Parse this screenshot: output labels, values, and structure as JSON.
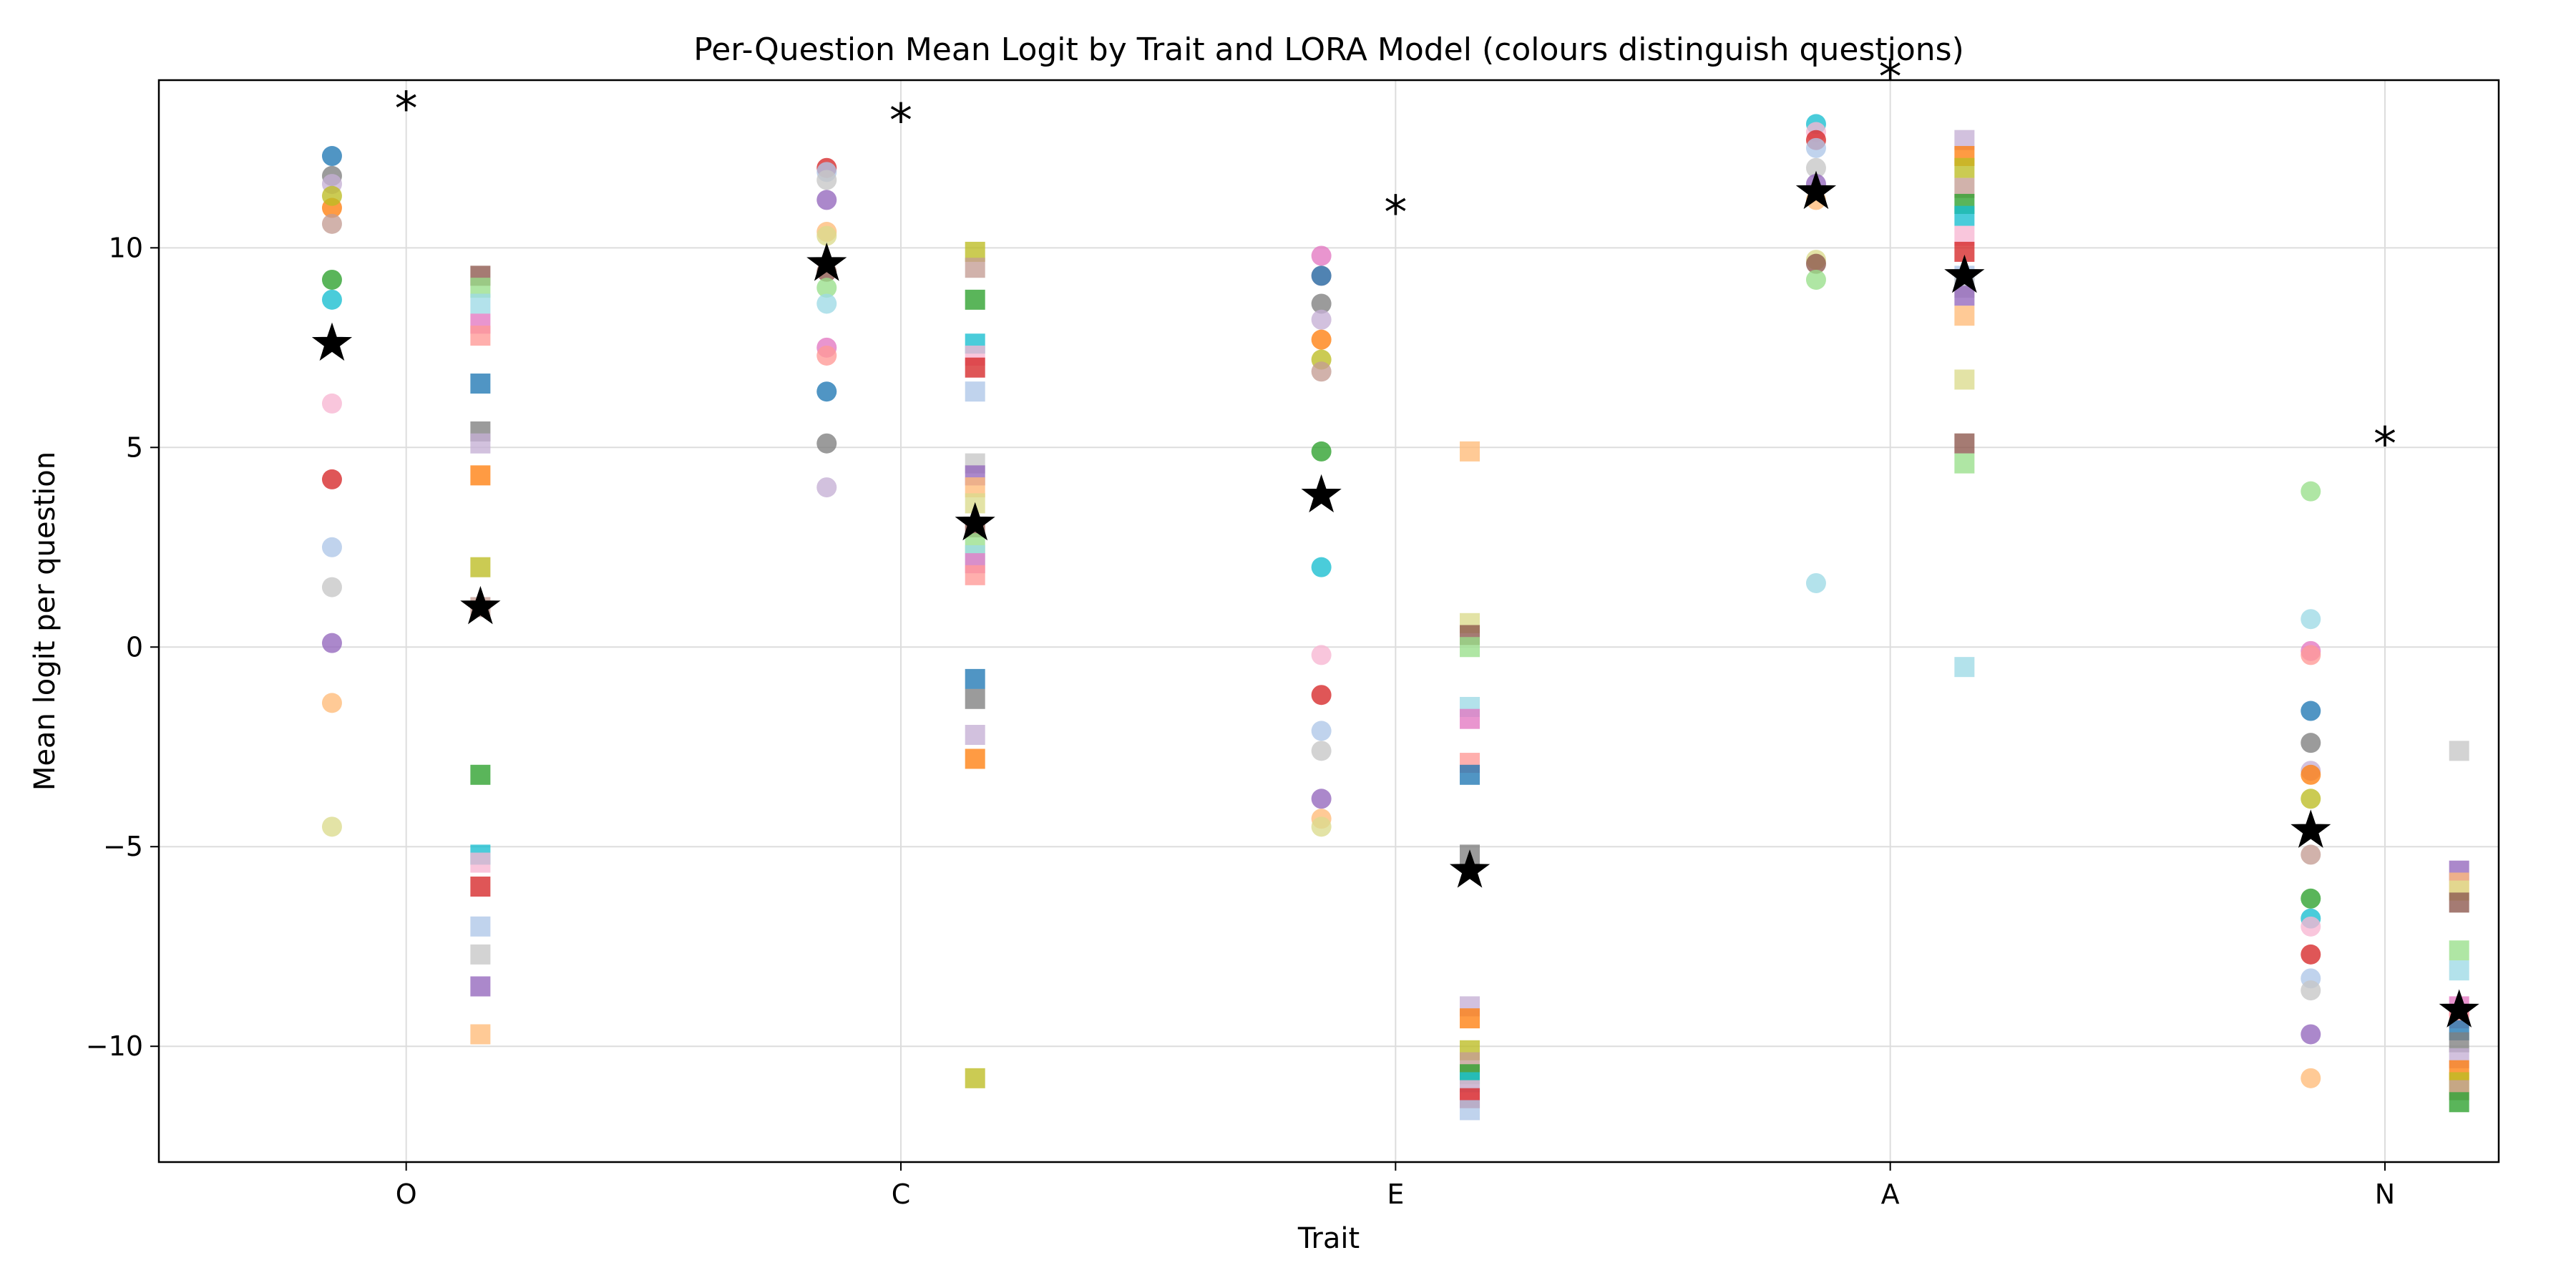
{
  "chart_data": {
    "type": "scatter",
    "title": "Per-Question Mean Logit by Trait and LORA Model (colours distinguish questions)",
    "xlabel": "Trait",
    "ylabel": "Mean logit per question",
    "categories": [
      "O",
      "C",
      "E",
      "A",
      "N"
    ],
    "ylim": [
      -12.9,
      14.2
    ],
    "yticks": [
      -10,
      -5,
      0,
      5,
      10
    ],
    "grid": true,
    "significance_marker": "*",
    "significance_y": [
      13.7,
      13.4,
      11.1,
      14.5,
      5.3
    ],
    "palette": [
      "#1f77b4",
      "#ff7f0e",
      "#2ca02c",
      "#d62728",
      "#9467bd",
      "#8c564b",
      "#e377c2",
      "#7f7f7f",
      "#bcbd22",
      "#17becf",
      "#aec7e8",
      "#ffbb78",
      "#98df8a",
      "#ff9896",
      "#c5b0d5",
      "#c49c94",
      "#f7b6d2",
      "#c7c7c7",
      "#dbdb8d",
      "#9edae5"
    ],
    "series": [
      {
        "marker": "circle",
        "offset": -0.15,
        "means": [
          7.6,
          9.6,
          3.8,
          11.4,
          -4.6
        ],
        "points": [
          [
            12.3,
            11.8,
            11.6,
            11.0,
            11.3,
            10.6,
            9.2,
            8.7,
            6.1,
            4.2,
            2.5,
            1.5,
            0.1,
            -1.4,
            -4.5
          ],
          [
            12.0,
            11.9,
            11.7,
            11.2,
            10.4,
            10.3,
            9.4,
            9.0,
            8.6,
            7.5,
            7.3,
            6.4,
            5.1,
            4.0
          ],
          [
            9.8,
            9.3,
            9.3,
            8.6,
            8.2,
            7.7,
            7.2,
            6.9,
            4.9,
            2.0,
            -0.2,
            -1.2,
            -2.1,
            -2.6,
            -3.8,
            -4.3,
            -4.5
          ],
          [
            13.1,
            12.9,
            12.7,
            12.5,
            12.0,
            11.6,
            11.2,
            9.7,
            9.6,
            9.2,
            1.6
          ],
          [
            3.9,
            0.7,
            -0.1,
            -0.2,
            -1.6,
            -2.4,
            -3.1,
            -3.2,
            -3.8,
            -5.2,
            -6.3,
            -6.8,
            -7.0,
            -7.7,
            -8.3,
            -8.6,
            -9.7,
            -10.8
          ]
        ]
      },
      {
        "marker": "square",
        "offset": 0.15,
        "means": [
          1.0,
          3.1,
          -5.6,
          9.3,
          -9.1
        ],
        "points": [
          [
            9.3,
            9.0,
            8.6,
            8.1,
            7.8,
            6.6,
            5.4,
            5.1,
            4.3,
            2.0,
            1.0,
            -3.2,
            -5.2,
            -5.4,
            -6.0,
            -7.0,
            -7.7,
            -8.5,
            -9.7
          ],
          [
            9.9,
            9.5,
            8.7,
            7.6,
            7.3,
            7.0,
            6.4,
            4.6,
            4.3,
            4.0,
            3.6,
            3.0,
            2.6,
            2.3,
            2.1,
            1.8,
            -0.8,
            -1.3,
            -2.2,
            -2.8,
            -10.8
          ],
          [
            4.9,
            0.6,
            0.3,
            0.0,
            -1.5,
            -1.8,
            -2.9,
            -3.2,
            -5.2,
            -9.0,
            -9.3,
            -10.1,
            -10.4,
            -10.7,
            -10.9,
            -11.1,
            -11.3,
            -11.6
          ],
          [
            12.7,
            12.3,
            12.0,
            11.5,
            11.1,
            10.8,
            10.3,
            9.9,
            9.3,
            9.0,
            8.8,
            8.3,
            6.7,
            5.1,
            4.6,
            -0.5
          ],
          [
            -2.6,
            -5.6,
            -5.9,
            -6.1,
            -6.4,
            -7.6,
            -8.1,
            -9.0,
            -9.3,
            -9.6,
            -9.9,
            -10.3,
            -10.6,
            -10.9,
            -11.1,
            -11.4
          ]
        ]
      }
    ]
  }
}
